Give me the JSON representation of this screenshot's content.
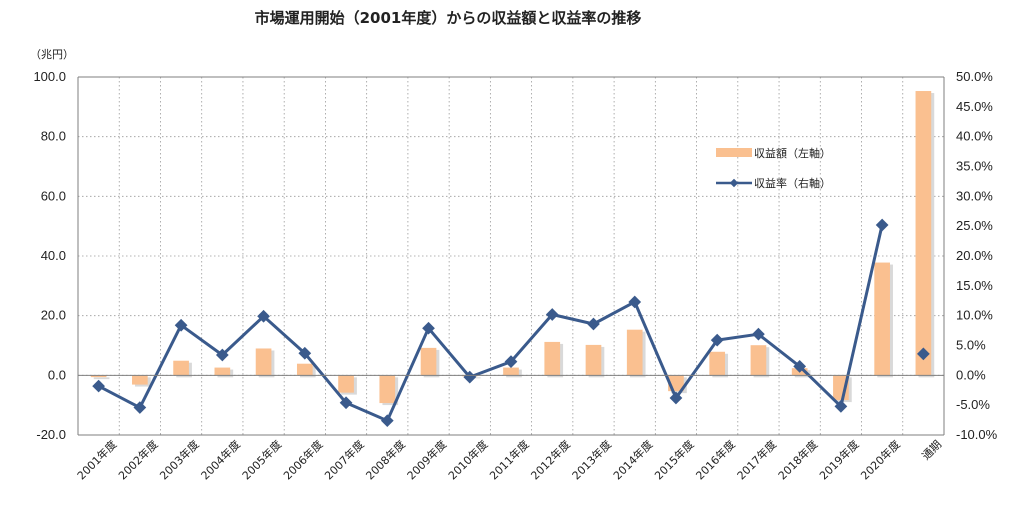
{
  "chart_data": {
    "type": "bar",
    "title": "市場運用開始（2001年度）からの収益額と収益率の推移",
    "y_unit_label": "（兆円）",
    "categories": [
      "2001年度",
      "2002年度",
      "2003年度",
      "2004年度",
      "2005年度",
      "2006年度",
      "2007年度",
      "2008年度",
      "2009年度",
      "2010年度",
      "2011年度",
      "2012年度",
      "2013年度",
      "2014年度",
      "2015年度",
      "2016年度",
      "2017年度",
      "2018年度",
      "2019年度",
      "2020年度",
      "通期"
    ],
    "y_left": {
      "min": -20,
      "max": 100,
      "step": 20,
      "tick_labels": [
        "-20.0",
        "0.0",
        "20.0",
        "40.0",
        "60.0",
        "80.0",
        "100.0"
      ]
    },
    "y_right": {
      "min": -10,
      "max": 50,
      "step": 5,
      "tick_labels": [
        "-10.0%",
        "-5.0%",
        "0.0%",
        "5.0%",
        "10.0%",
        "15.0%",
        "20.0%",
        "25.0%",
        "30.0%",
        "35.0%",
        "40.0%",
        "45.0%",
        "50.0%"
      ]
    },
    "grid": true,
    "legend_position": "upper-right",
    "series": [
      {
        "name": "収益額（左軸）",
        "type": "bar",
        "axis": "left",
        "color": "#FAC090",
        "values": [
          -0.6,
          -3.1,
          4.9,
          2.6,
          9.0,
          3.9,
          -5.8,
          -9.3,
          9.2,
          -0.3,
          2.6,
          11.2,
          10.2,
          15.3,
          -5.3,
          7.9,
          10.1,
          2.4,
          -8.3,
          37.8,
          95.3
        ]
      },
      {
        "name": "収益率（右軸）",
        "type": "line",
        "axis": "right",
        "color": "#3A5A8C",
        "values": [
          -1.8,
          -5.4,
          8.4,
          3.4,
          9.9,
          3.7,
          -4.6,
          -7.6,
          7.9,
          -0.3,
          2.3,
          10.2,
          8.6,
          12.3,
          -3.8,
          5.9,
          6.9,
          1.5,
          -5.2,
          25.2,
          3.6
        ],
        "connect_last_point": false
      }
    ]
  }
}
